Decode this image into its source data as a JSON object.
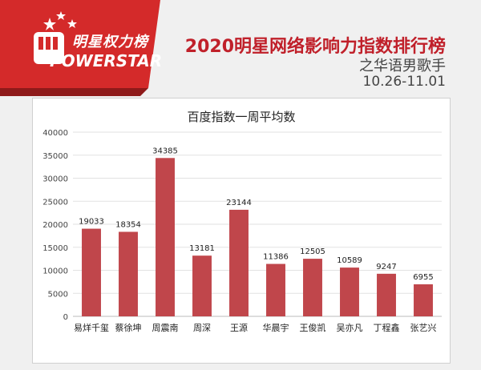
{
  "header": {
    "logo_cn": "明星权力榜",
    "logo_en": "POWERSTAR",
    "title": "2020明星网络影响力指数排行榜",
    "subtitle": "之华语男歌手",
    "date_range": "10.26-11.01"
  },
  "colors": {
    "bar": "#c0464b",
    "title_red": "#c0202a",
    "logo_red": "#d42a2a"
  },
  "chart_data": {
    "type": "bar",
    "title": "百度指数一周平均数",
    "categories": [
      "易烊千玺",
      "蔡徐坤",
      "周震南",
      "周深",
      "王源",
      "华晨宇",
      "王俊凯",
      "吴亦凡",
      "丁程鑫",
      "张艺兴"
    ],
    "values": [
      19033,
      18354,
      34385,
      13181,
      23144,
      11386,
      12505,
      10589,
      9247,
      6955
    ],
    "ylim": [
      0,
      40000
    ],
    "yticks": [
      0,
      5000,
      10000,
      15000,
      20000,
      25000,
      30000,
      35000,
      40000
    ],
    "grid": true
  }
}
